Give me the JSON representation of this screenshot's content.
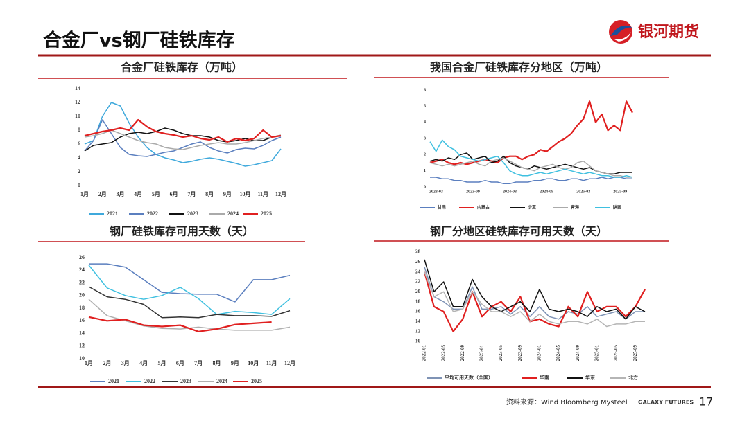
{
  "header": {
    "title": "合金厂vs钢厂硅铁库存",
    "logo_text": "银河期货"
  },
  "chart_data": [
    {
      "type": "line",
      "title": "合金厂硅铁库存（万吨）",
      "categories": [
        "1月",
        null,
        "2月",
        null,
        "3月",
        null,
        "4月",
        null,
        "5月",
        null,
        "6月",
        null,
        "7月",
        null,
        "8月",
        null,
        "9月",
        null,
        "10月",
        null,
        "11月",
        null,
        "12月"
      ],
      "ylim": [
        0,
        14
      ],
      "yticks": [
        0,
        2,
        4,
        6,
        8,
        10,
        12,
        14
      ],
      "series": [
        {
          "name": "2021",
          "color": "#3fa9dc",
          "values": [
            6,
            6.5,
            10,
            12,
            11.5,
            9,
            7,
            5.5,
            4.5,
            4,
            3.7,
            3.3,
            3.5,
            3.8,
            4,
            3.8,
            3.5,
            3.2,
            2.8,
            3,
            3.3,
            3.6,
            5.3
          ]
        },
        {
          "name": "2022",
          "color": "#5b7fbf",
          "values": [
            5,
            6.5,
            9.5,
            7.5,
            5.5,
            4.5,
            4.3,
            4.2,
            4.5,
            4.8,
            5,
            5.5,
            6,
            6.3,
            5.5,
            5,
            4.7,
            5.2,
            5.4,
            5.3,
            5.8,
            6.5,
            7
          ]
        },
        {
          "name": "2023",
          "color": "#111111",
          "values": [
            5,
            5.8,
            6,
            6.2,
            7,
            7.5,
            7.7,
            7.5,
            7.8,
            8.3,
            8,
            7.5,
            7.2,
            7.2,
            7,
            6.5,
            6.3,
            6.5,
            6.8,
            6.5,
            6.5,
            7,
            7.2
          ]
        },
        {
          "name": "2024",
          "color": "#aaaaaa",
          "values": [
            7,
            7.2,
            7.5,
            8,
            7.5,
            7,
            6.5,
            6.2,
            6,
            5.5,
            5.3,
            5.2,
            5.5,
            5.8,
            6,
            6.2,
            6,
            6,
            6.2,
            6.5,
            6.8,
            7,
            7.3
          ]
        },
        {
          "name": "2025",
          "color": "#e02020",
          "values": [
            7.2,
            7.5,
            7.8,
            8,
            8.3,
            8,
            9.5,
            8.5,
            7.8,
            7.5,
            7.3,
            7,
            7.2,
            6.8,
            6.6,
            7,
            6.3,
            6.8,
            6.5,
            6.8,
            8,
            7,
            7.2
          ]
        }
      ]
    },
    {
      "type": "line",
      "title": "我国合金厂硅铁库存分地区（万吨）",
      "categories": [
        null,
        "2023-03",
        null,
        null,
        null,
        null,
        null,
        "2023-09",
        null,
        null,
        null,
        null,
        null,
        "2024-03",
        null,
        null,
        null,
        null,
        null,
        "2024-09",
        null,
        null,
        null,
        null,
        null,
        "2025-03",
        null,
        null,
        null,
        null,
        null,
        "2025-09",
        null,
        null
      ],
      "ylim": [
        0,
        6
      ],
      "yticks": [
        0,
        1,
        2,
        3,
        4,
        5,
        6
      ],
      "series": [
        {
          "name": "甘肃",
          "color": "#5b7fbf",
          "values": [
            0.6,
            0.6,
            0.5,
            0.5,
            0.4,
            0.4,
            0.3,
            0.3,
            0.3,
            0.4,
            0.3,
            0.3,
            0.2,
            0.2,
            0.3,
            0.3,
            0.3,
            0.4,
            0.4,
            0.5,
            0.5,
            0.4,
            0.4,
            0.5,
            0.5,
            0.4,
            0.5,
            0.5,
            0.6,
            0.5,
            0.6,
            0.6,
            0.5,
            0.5
          ]
        },
        {
          "name": "内蒙古",
          "color": "#e02020",
          "values": [
            1.5,
            1.6,
            1.7,
            1.5,
            1.4,
            1.5,
            1.4,
            1.5,
            1.6,
            1.7,
            1.6,
            1.5,
            1.8,
            1.9,
            1.9,
            1.7,
            1.9,
            2.0,
            2.3,
            2.2,
            2.5,
            2.8,
            3.0,
            3.3,
            3.8,
            4.2,
            5.3,
            4.0,
            4.5,
            3.5,
            3.8,
            3.5,
            5.3,
            4.6
          ]
        },
        {
          "name": "宁夏",
          "color": "#111111",
          "values": [
            1.6,
            1.7,
            1.6,
            1.8,
            1.7,
            2.0,
            2.1,
            1.7,
            1.8,
            1.9,
            1.5,
            1.6,
            1.9,
            1.5,
            1.3,
            1.2,
            1.1,
            1.3,
            1.2,
            1.1,
            1.2,
            1.3,
            1.4,
            1.3,
            1.2,
            1.1,
            1.2,
            1.0,
            0.9,
            0.8,
            0.8,
            0.9,
            0.9,
            0.9
          ]
        },
        {
          "name": "青海",
          "color": "#aaaaaa",
          "values": [
            1.5,
            1.4,
            1.3,
            1.4,
            1.3,
            1.4,
            1.5,
            1.6,
            1.4,
            1.3,
            1.6,
            1.7,
            1.8,
            1.6,
            1.4,
            1.2,
            1.1,
            1.0,
            1.2,
            1.3,
            1.4,
            1.2,
            1.1,
            1.2,
            1.5,
            1.6,
            1.3,
            1.0,
            0.9,
            0.8,
            0.7,
            0.7,
            0.6,
            0.6
          ]
        },
        {
          "name": "陕西",
          "color": "#3fc0e0",
          "values": [
            2.8,
            2.2,
            2.9,
            2.5,
            2.3,
            1.9,
            1.8,
            1.7,
            1.6,
            1.7,
            1.8,
            1.9,
            1.5,
            1.0,
            0.8,
            0.7,
            0.7,
            0.8,
            0.9,
            0.8,
            0.9,
            1.0,
            1.1,
            1.0,
            0.9,
            0.8,
            0.9,
            0.8,
            0.7,
            0.7,
            0.6,
            0.6,
            0.7,
            0.6
          ]
        }
      ]
    },
    {
      "type": "line",
      "title": "钢厂硅铁库存可用天数（天）",
      "categories": [
        "1月",
        "2月",
        "3月",
        "4月",
        "5月",
        "6月",
        "7月",
        "8月",
        "9月",
        "10月",
        "11月",
        "12月"
      ],
      "ylim": [
        10,
        26
      ],
      "yticks": [
        10,
        12,
        14,
        16,
        18,
        20,
        22,
        24,
        26
      ],
      "series": [
        {
          "name": "2021",
          "color": "#5b7fbf",
          "values": [
            25,
            25,
            24.5,
            22.5,
            20.5,
            20.3,
            20.2,
            20.2,
            19,
            22.5,
            22.5,
            23.2
          ]
        },
        {
          "name": "2022",
          "color": "#3fc0e0",
          "values": [
            24.8,
            21.2,
            20,
            19.4,
            20,
            21.3,
            19.5,
            17,
            17.5,
            17.3,
            17,
            19.5
          ]
        },
        {
          "name": "2023",
          "color": "#333333",
          "values": [
            21.4,
            19.8,
            19.4,
            18.6,
            16.5,
            16.6,
            16.5,
            17,
            16.8,
            16.8,
            16.7,
            17.6
          ]
        },
        {
          "name": "2024",
          "color": "#b0b0b0",
          "values": [
            19.4,
            16.8,
            16,
            15.2,
            14.8,
            14.7,
            15,
            14.7,
            14.5,
            14.5,
            14.5,
            15
          ]
        },
        {
          "name": "2025",
          "color": "#e02020",
          "values": [
            16.6,
            16,
            16.2,
            15.3,
            15.1,
            15.3,
            14.3,
            14.7,
            15.4,
            15.6,
            15.8,
            null
          ]
        }
      ]
    },
    {
      "type": "line",
      "title": "钢厂分地区硅铁库存可用天数（天）",
      "categories": [
        "2022-01",
        null,
        "2022-05",
        null,
        "2022-09",
        null,
        "2023-01",
        null,
        "2023-05",
        null,
        "2023-09",
        null,
        "2024-01",
        null,
        "2024-05",
        null,
        "2024-09",
        null,
        "2025-01",
        null,
        "2025-05",
        null,
        "2025-09",
        null
      ],
      "ylim": [
        10,
        28
      ],
      "yticks": [
        10,
        12,
        14,
        16,
        18,
        20,
        22,
        24,
        26,
        28
      ],
      "series": [
        {
          "name": "平均可用天数（全国）",
          "color": "#7f93b5",
          "values": [
            25,
            19,
            18,
            16.5,
            16.5,
            21,
            16.5,
            16.5,
            17,
            15.5,
            17,
            15,
            17,
            15,
            14.5,
            16,
            15.5,
            17,
            15,
            15.5,
            16,
            14.5,
            16,
            16
          ]
        },
        {
          "name": "华南",
          "color": "#e02020",
          "values": [
            24,
            17,
            16,
            12,
            14.5,
            20,
            15,
            17,
            18,
            16,
            19,
            14,
            14.5,
            13.5,
            13,
            17,
            15,
            20,
            16,
            17,
            17,
            15,
            17,
            20.5
          ]
        },
        {
          "name": "华东",
          "color": "#111111",
          "values": [
            26.5,
            20,
            22,
            17,
            17,
            22.5,
            19,
            17,
            16,
            17,
            18,
            16,
            20.5,
            16.5,
            16,
            16.5,
            16,
            15,
            17,
            16,
            16.5,
            14.5,
            17,
            16
          ]
        },
        {
          "name": "北方",
          "color": "#b5b5b5",
          "values": [
            24,
            19,
            20,
            16,
            16.5,
            20,
            17.5,
            16,
            16,
            15,
            16,
            14,
            15.5,
            14,
            13.5,
            14,
            14,
            13.5,
            14.5,
            13,
            13.5,
            13.5,
            14,
            14
          ]
        }
      ]
    }
  ],
  "footer": {
    "source": "资料来源：Wind Bloomberg Mysteel",
    "brand": "GALAXY FUTURES",
    "page": "17"
  }
}
